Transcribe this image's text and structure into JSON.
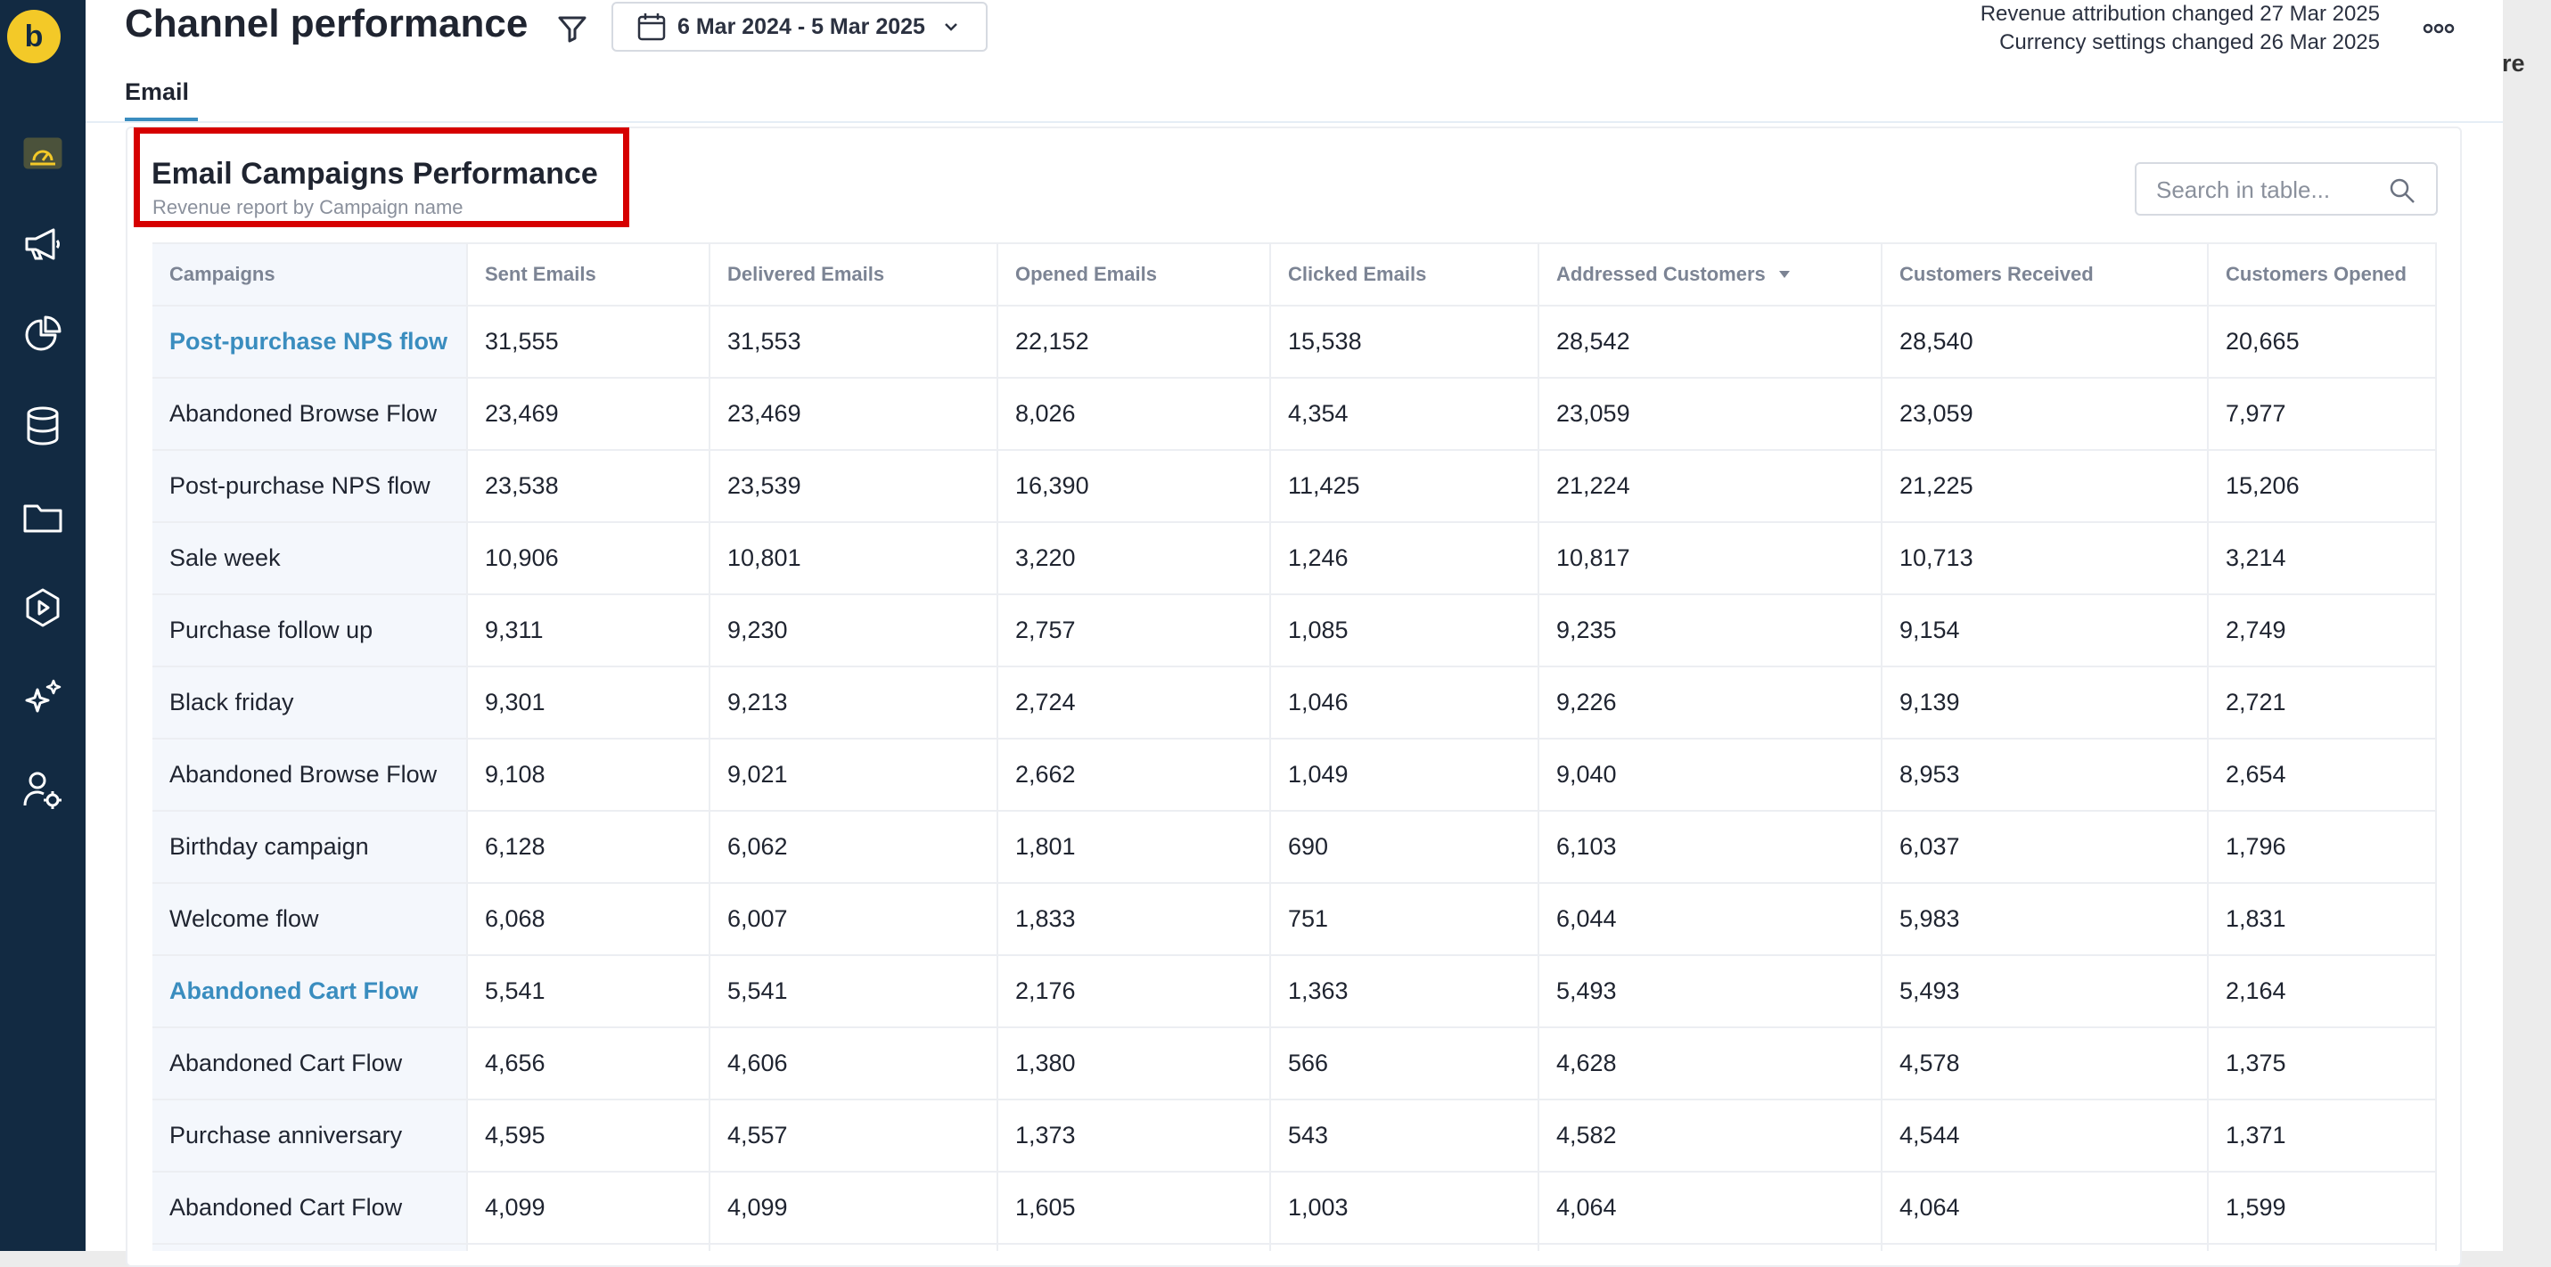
{
  "app": {
    "logo_letter": "b"
  },
  "sidebar": {
    "items": [
      {
        "icon": "dashboard-icon"
      },
      {
        "icon": "megaphone-icon"
      },
      {
        "icon": "pie-chart-icon"
      },
      {
        "icon": "database-icon"
      },
      {
        "icon": "folder-icon"
      },
      {
        "icon": "play-icon"
      },
      {
        "icon": "sparkles-icon"
      },
      {
        "icon": "user-settings-icon"
      }
    ]
  },
  "header": {
    "title": "Channel performance",
    "date_range": "6 Mar 2024 - 5 Mar 2025",
    "notes": [
      "Revenue attribution changed 27 Mar 2025",
      "Currency settings changed 26 Mar 2025"
    ]
  },
  "tabs": [
    {
      "label": "Email",
      "active": true
    }
  ],
  "right_edge_text": "are",
  "card": {
    "title": "Email Campaigns Performance",
    "subtitle": "Revenue report by Campaign name",
    "search_placeholder": "Search in table..."
  },
  "table": {
    "columns": [
      "Campaigns",
      "Sent Emails",
      "Delivered Emails",
      "Opened Emails",
      "Clicked Emails",
      "Addressed Customers",
      "Customers Received",
      "Customers Opened"
    ],
    "sorted_column": "Addressed Customers",
    "sort_direction": "desc",
    "rows": [
      {
        "campaign": "Post-purchase NPS flow",
        "link": true,
        "values": [
          "31,555",
          "31,553",
          "22,152",
          "15,538",
          "28,542",
          "28,540",
          "20,665"
        ]
      },
      {
        "campaign": "Abandoned Browse Flow",
        "link": false,
        "values": [
          "23,469",
          "23,469",
          "8,026",
          "4,354",
          "23,059",
          "23,059",
          "7,977"
        ]
      },
      {
        "campaign": "Post-purchase NPS flow",
        "link": false,
        "values": [
          "23,538",
          "23,539",
          "16,390",
          "11,425",
          "21,224",
          "21,225",
          "15,206"
        ]
      },
      {
        "campaign": "Sale week",
        "link": false,
        "values": [
          "10,906",
          "10,801",
          "3,220",
          "1,246",
          "10,817",
          "10,713",
          "3,214"
        ]
      },
      {
        "campaign": "Purchase follow up",
        "link": false,
        "values": [
          "9,311",
          "9,230",
          "2,757",
          "1,085",
          "9,235",
          "9,154",
          "2,749"
        ]
      },
      {
        "campaign": "Black friday",
        "link": false,
        "values": [
          "9,301",
          "9,213",
          "2,724",
          "1,046",
          "9,226",
          "9,139",
          "2,721"
        ]
      },
      {
        "campaign": "Abandoned Browse Flow",
        "link": false,
        "values": [
          "9,108",
          "9,021",
          "2,662",
          "1,049",
          "9,040",
          "8,953",
          "2,654"
        ]
      },
      {
        "campaign": "Birthday campaign",
        "link": false,
        "values": [
          "6,128",
          "6,062",
          "1,801",
          "690",
          "6,103",
          "6,037",
          "1,796"
        ]
      },
      {
        "campaign": "Welcome flow",
        "link": false,
        "values": [
          "6,068",
          "6,007",
          "1,833",
          "751",
          "6,044",
          "5,983",
          "1,831"
        ]
      },
      {
        "campaign": "Abandoned Cart Flow",
        "link": true,
        "values": [
          "5,541",
          "5,541",
          "2,176",
          "1,363",
          "5,493",
          "5,493",
          "2,164"
        ]
      },
      {
        "campaign": "Abandoned Cart Flow",
        "link": false,
        "values": [
          "4,656",
          "4,606",
          "1,380",
          "566",
          "4,628",
          "4,578",
          "1,375"
        ]
      },
      {
        "campaign": "Purchase anniversary",
        "link": false,
        "values": [
          "4,595",
          "4,557",
          "1,373",
          "543",
          "4,582",
          "4,544",
          "1,371"
        ]
      },
      {
        "campaign": "Abandoned Cart Flow",
        "link": false,
        "values": [
          "4,099",
          "4,099",
          "1,605",
          "1,003",
          "4,064",
          "4,064",
          "1,599"
        ]
      },
      {
        "campaign": "",
        "link": false,
        "values": [
          "",
          "",
          "",
          "",
          "",
          "",
          ""
        ]
      }
    ]
  },
  "colors": {
    "sidebar": "#122a42",
    "logo": "#f3c928",
    "link": "#3a8dbf",
    "highlight": "#d60000"
  }
}
